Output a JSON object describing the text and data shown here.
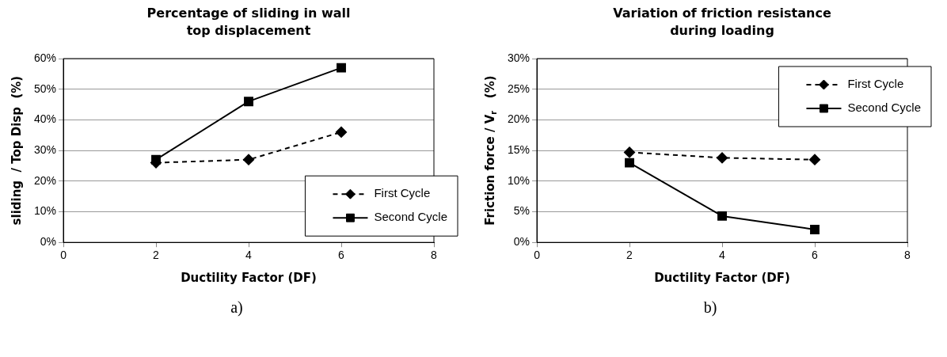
{
  "chart_data": [
    {
      "type": "line",
      "title": "Percentage of sliding in wall top displacement",
      "xlabel": "Ductility Factor (DF)",
      "ylabel": "sliding  / Top Disp  (%)",
      "x": [
        2,
        4,
        6
      ],
      "series": [
        {
          "name": "First Cycle",
          "color": "#000000",
          "values": [
            26,
            27,
            36
          ],
          "marker": "diamond",
          "line_style": "dashed"
        },
        {
          "name": "Second Cycle",
          "color": "#000000",
          "values": [
            27,
            46,
            57
          ],
          "marker": "square",
          "line_style": "solid"
        }
      ],
      "xlim": [
        0,
        8
      ],
      "xticks": [
        0,
        2,
        4,
        6,
        8
      ],
      "ylim": [
        0,
        60
      ],
      "yticks": [
        {
          "value": 0,
          "label": "0%"
        },
        {
          "value": 10,
          "label": "10%"
        },
        {
          "value": 20,
          "label": "20%"
        },
        {
          "value": 30,
          "label": "30%"
        },
        {
          "value": 40,
          "label": "40%"
        },
        {
          "value": 50,
          "label": "50%"
        },
        {
          "value": 60,
          "label": "60%"
        }
      ],
      "grid": "y",
      "legend": "bottom right",
      "annotations": [
        "a)"
      ]
    },
    {
      "type": "line",
      "title": "Variation of friction resistance during loading",
      "xlabel": "Ductility Factor (DF)",
      "ylabel": "Friction force / V$_{r}$   (%)",
      "x": [
        2,
        4,
        6
      ],
      "series": [
        {
          "name": "First Cycle",
          "color": "#000000",
          "values": [
            14.7,
            13.8,
            13.5
          ],
          "marker": "diamond",
          "line_style": "dashed"
        },
        {
          "name": "Second Cycle",
          "color": "#000000",
          "values": [
            13,
            4.3,
            2.1
          ],
          "marker": "square",
          "line_style": "solid"
        }
      ],
      "xlim": [
        0,
        8
      ],
      "xticks": [
        0,
        2,
        4,
        6,
        8
      ],
      "ylim": [
        0,
        30
      ],
      "yticks": [
        {
          "value": 0,
          "label": "0%"
        },
        {
          "value": 5,
          "label": "5%"
        },
        {
          "value": 10,
          "label": "10%"
        },
        {
          "value": 15,
          "label": "15%"
        },
        {
          "value": 20,
          "label": "20%"
        },
        {
          "value": 25,
          "label": "25%"
        },
        {
          "value": 30,
          "label": "30%"
        }
      ],
      "grid": "y",
      "legend": "top right",
      "annotations": [
        "b)"
      ]
    }
  ]
}
